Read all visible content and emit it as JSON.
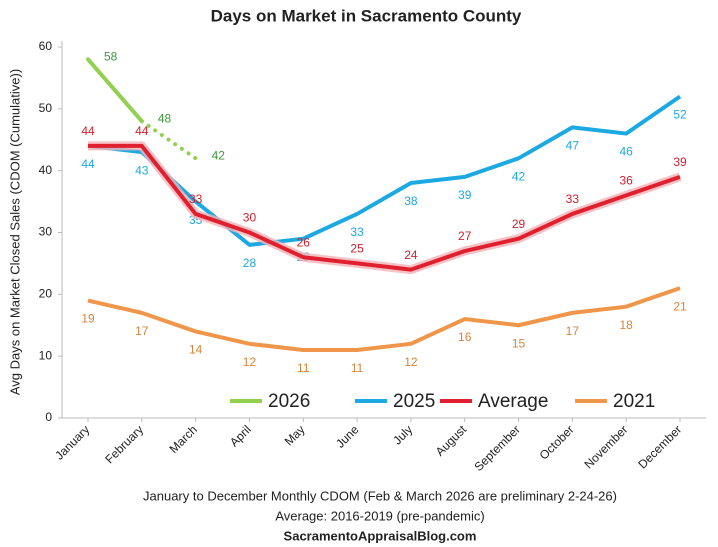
{
  "chart_data": {
    "type": "line",
    "title": "Days on Market in Sacramento County",
    "y_label": "Avg Days on Market Closed Sales (CDOM (Cumulative))",
    "notes": [
      "January to December Monthly CDOM (Feb & March 2026 are preliminary 2-24-26)",
      "Average: 2016-2019 (pre-pandemic)",
      "SacramentoAppraisalBlog.com"
    ],
    "categories": [
      "January",
      "February",
      "March",
      "April",
      "May",
      "June",
      "July",
      "August",
      "September",
      "October",
      "November",
      "December"
    ],
    "series": [
      {
        "name": "2026",
        "color": "#92d050",
        "values": [
          58,
          48,
          42,
          null,
          null,
          null,
          null,
          null,
          null,
          null,
          null,
          null
        ]
      },
      {
        "name": "2025",
        "color": "#1ca9e1",
        "values": [
          44,
          43,
          35,
          28,
          29,
          33,
          38,
          39,
          42,
          47,
          46,
          52
        ]
      },
      {
        "name": "Average",
        "color": "#e0202e",
        "values": [
          44,
          44,
          33,
          30,
          26,
          25,
          24,
          27,
          29,
          33,
          36,
          39
        ]
      },
      {
        "name": "2021",
        "color": "#f0964a",
        "values": [
          19,
          17,
          14,
          12,
          11,
          11,
          12,
          16,
          15,
          17,
          18,
          21
        ]
      }
    ],
    "ylim": [
      0,
      60
    ],
    "yticks": [
      0,
      10,
      20,
      30,
      40,
      50,
      60
    ],
    "grid": false,
    "legend": "bottom"
  }
}
